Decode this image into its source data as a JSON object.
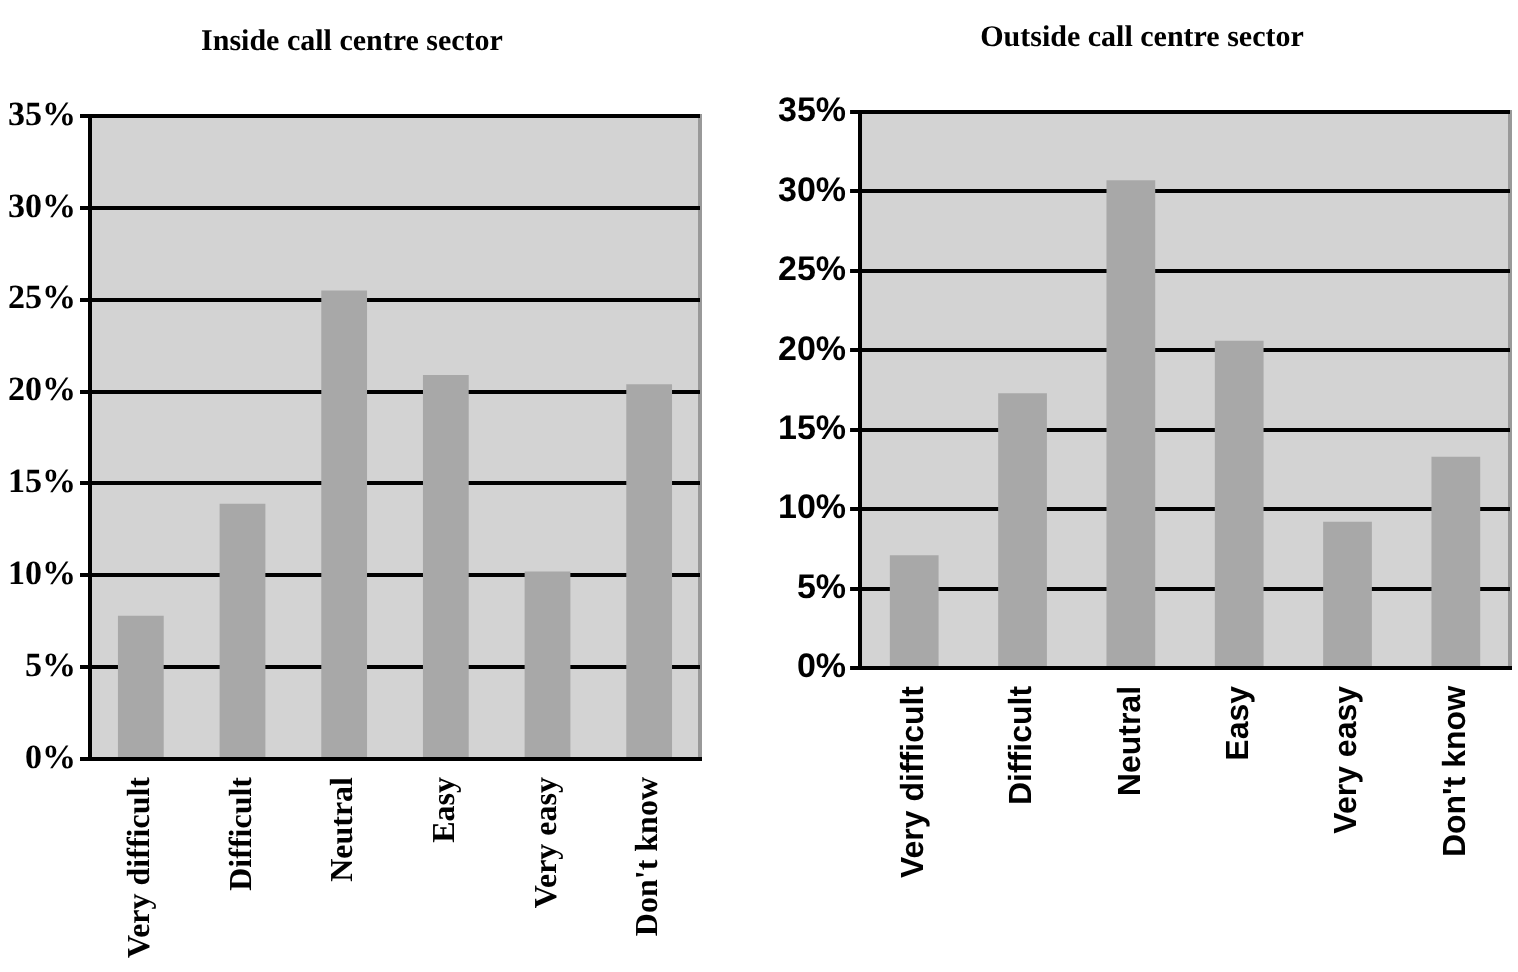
{
  "chart_data": [
    {
      "type": "bar",
      "title": "Inside call centre sector",
      "categories": [
        "Very difficult",
        "Difficult",
        "Neutral",
        "Easy",
        "Very easy",
        "Don't know"
      ],
      "values": [
        7.8,
        13.9,
        25.5,
        20.9,
        10.2,
        20.4
      ],
      "color": "#a8a8a8",
      "ylim": [
        0,
        35
      ],
      "yticks": [
        {
          "value": 0,
          "label": "0%"
        },
        {
          "value": 5,
          "label": "5%"
        },
        {
          "value": 10,
          "label": "10%"
        },
        {
          "value": 15,
          "label": "15%"
        },
        {
          "value": 20,
          "label": "20%"
        },
        {
          "value": 25,
          "label": "25%"
        },
        {
          "value": 30,
          "label": "30%"
        },
        {
          "value": 35,
          "label": "35%"
        }
      ],
      "grid": "y",
      "legend": false
    },
    {
      "type": "bar",
      "title": "Outside call centre sector",
      "categories": [
        "Very difficult",
        "Difficult",
        "Neutral",
        "Easy",
        "Very easy",
        "Don't know"
      ],
      "values": [
        7.1,
        17.3,
        30.7,
        20.6,
        9.2,
        13.3
      ],
      "color": "#a8a8a8",
      "ylim": [
        0,
        35
      ],
      "yticks": [
        {
          "value": 0,
          "label": "0%"
        },
        {
          "value": 5,
          "label": "5%"
        },
        {
          "value": 10,
          "label": "10%"
        },
        {
          "value": 15,
          "label": "15%"
        },
        {
          "value": 20,
          "label": "20%"
        },
        {
          "value": 25,
          "label": "25%"
        },
        {
          "value": 30,
          "label": "30%"
        },
        {
          "value": 35,
          "label": "35%"
        }
      ],
      "grid": "y",
      "legend": false
    }
  ]
}
